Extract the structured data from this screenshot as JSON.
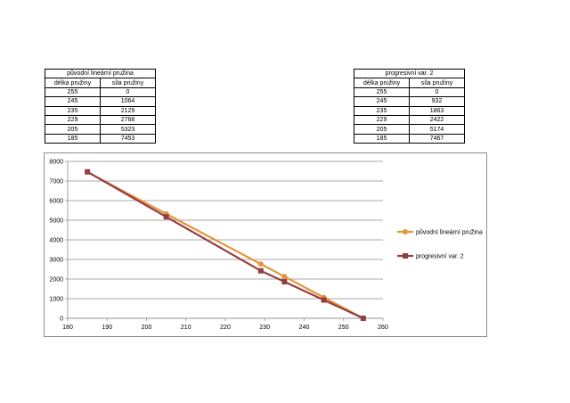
{
  "tables": [
    {
      "title": "původní lineární pružina",
      "headers": [
        "délka pružiny",
        "síla pružiny"
      ],
      "rows": [
        [
          "255",
          "0"
        ],
        [
          "245",
          "1064"
        ],
        [
          "235",
          "2129"
        ],
        [
          "229",
          "2768"
        ],
        [
          "205",
          "5323"
        ],
        [
          "185",
          "7453"
        ]
      ]
    },
    {
      "title": "progresivní var. 2",
      "headers": [
        "délka pružiny",
        "síla pružiny"
      ],
      "rows": [
        [
          "255",
          "0"
        ],
        [
          "245",
          "932"
        ],
        [
          "235",
          "1863"
        ],
        [
          "229",
          "2422"
        ],
        [
          "205",
          "5174"
        ],
        [
          "185",
          "7467"
        ]
      ]
    }
  ],
  "chart_data": {
    "type": "line",
    "title": "",
    "xlabel": "",
    "ylabel": "",
    "xlim": [
      180,
      260
    ],
    "ylim": [
      0,
      8000
    ],
    "x_ticks": [
      180,
      190,
      200,
      210,
      220,
      230,
      240,
      250,
      260
    ],
    "y_ticks": [
      0,
      1000,
      2000,
      3000,
      4000,
      5000,
      6000,
      7000,
      8000
    ],
    "grid": "horizontal",
    "legend_position": "right",
    "series": [
      {
        "name": "původní lineární pružina",
        "color": "#E6943A",
        "marker": "circle",
        "x": [
          255,
          245,
          235,
          229,
          205,
          185
        ],
        "y": [
          0,
          1064,
          2129,
          2768,
          5323,
          7453
        ]
      },
      {
        "name": "progresivní var. 2",
        "color": "#943F42",
        "marker": "square",
        "x": [
          255,
          245,
          235,
          229,
          205,
          185
        ],
        "y": [
          0,
          932,
          1863,
          2422,
          5174,
          7467
        ]
      }
    ]
  }
}
